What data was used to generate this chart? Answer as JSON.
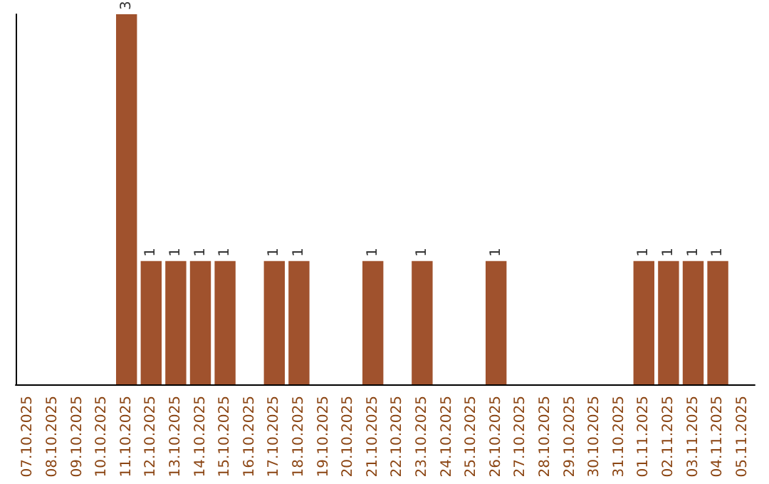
{
  "chart_data": {
    "type": "bar",
    "categories": [
      "07.10.2025",
      "08.10.2025",
      "09.10.2025",
      "10.10.2025",
      "11.10.2025",
      "12.10.2025",
      "13.10.2025",
      "14.10.2025",
      "15.10.2025",
      "16.10.2025",
      "17.10.2025",
      "18.10.2025",
      "19.10.2025",
      "20.10.2025",
      "21.10.2025",
      "22.10.2025",
      "23.10.2025",
      "24.10.2025",
      "25.10.2025",
      "26.10.2025",
      "27.10.2025",
      "28.10.2025",
      "29.10.2025",
      "30.10.2025",
      "31.10.2025",
      "01.11.2025",
      "02.11.2025",
      "03.11.2025",
      "04.11.2025",
      "05.11.2025"
    ],
    "values": [
      0,
      0,
      0,
      0,
      3,
      1,
      1,
      1,
      1,
      0,
      1,
      1,
      0,
      0,
      1,
      0,
      1,
      0,
      0,
      1,
      0,
      0,
      0,
      0,
      0,
      1,
      1,
      1,
      1,
      0
    ],
    "value_labels": [
      null,
      null,
      null,
      null,
      "3",
      "1",
      "1",
      "1",
      "1",
      null,
      "1",
      "1",
      null,
      null,
      "1",
      null,
      "1",
      null,
      null,
      "1",
      null,
      null,
      null,
      null,
      null,
      "1",
      "1",
      "1",
      "1",
      null
    ],
    "color": "#a0522d",
    "tick_labels": "x"
  }
}
